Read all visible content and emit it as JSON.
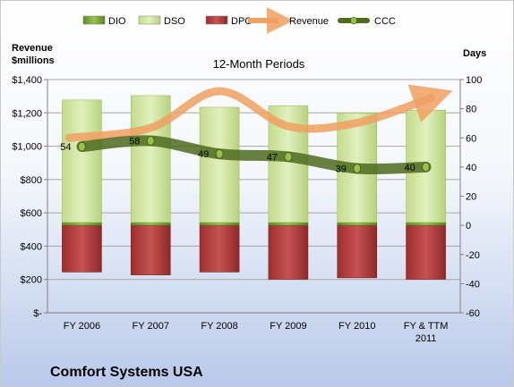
{
  "company": "Comfort Systems USA",
  "chart_data": {
    "type": "bar",
    "subtitle": "12-Month Periods",
    "left_axis_title": [
      "Revenue",
      "$millions"
    ],
    "right_axis_title": "Days",
    "categories": [
      [
        "FY 2006"
      ],
      [
        "FY 2007"
      ],
      [
        "FY 2008"
      ],
      [
        "FY 2009"
      ],
      [
        "FY 2010"
      ],
      [
        "FY & TTM",
        "2011"
      ]
    ],
    "left_ylim": [
      0,
      1400
    ],
    "left_ticks": [
      {
        "value": 0,
        "label": "$-"
      },
      {
        "value": 200,
        "label": "$200"
      },
      {
        "value": 400,
        "label": "$400"
      },
      {
        "value": 600,
        "label": "$600"
      },
      {
        "value": 800,
        "label": "$800"
      },
      {
        "value": 1000,
        "label": "$1,000"
      },
      {
        "value": 1200,
        "label": "$1,200"
      },
      {
        "value": 1400,
        "label": "$1,400"
      }
    ],
    "right_ylim": [
      -60,
      100
    ],
    "right_ticks": [
      -60,
      -40,
      -20,
      0,
      20,
      40,
      60,
      80,
      100
    ],
    "legend": [
      {
        "name": "DIO",
        "kind": "bar",
        "color": "#7aa33a"
      },
      {
        "name": "DSO",
        "kind": "bar",
        "color": "#d5e8a8"
      },
      {
        "name": "DPO",
        "kind": "bar",
        "color": "#b23b3b"
      },
      {
        "name": "Revenue",
        "kind": "arrow",
        "color": "#f0a060"
      },
      {
        "name": "CCC",
        "kind": "line",
        "color": "#4e6b1e"
      }
    ],
    "series": [
      {
        "name": "DIO",
        "axis": "right",
        "values": [
          2,
          2,
          2,
          2,
          2,
          2
        ]
      },
      {
        "name": "DSO",
        "axis": "right",
        "values": [
          84,
          87,
          79,
          80,
          75,
          77
        ]
      },
      {
        "name": "DPO",
        "axis": "right",
        "values": [
          -32,
          -34,
          -32,
          -37,
          -36,
          -37
        ]
      },
      {
        "name": "Revenue",
        "axis": "left",
        "values": [
          1050,
          1110,
          1330,
          1120,
          1140,
          1290
        ]
      },
      {
        "name": "CCC",
        "axis": "right",
        "values": [
          54,
          58,
          49,
          47,
          39,
          40
        ]
      }
    ],
    "ccc_labels": [
      "54",
      "58",
      "49",
      "47",
      "39",
      "40"
    ],
    "colors": {
      "dio": "#7aa33a",
      "dso": "#d5e8a8",
      "dpo": "#b23b3b",
      "revenue": "#f0a060",
      "ccc": "#4e6b1e",
      "ccc_marker": "#9cbf4a"
    },
    "grid": true
  }
}
